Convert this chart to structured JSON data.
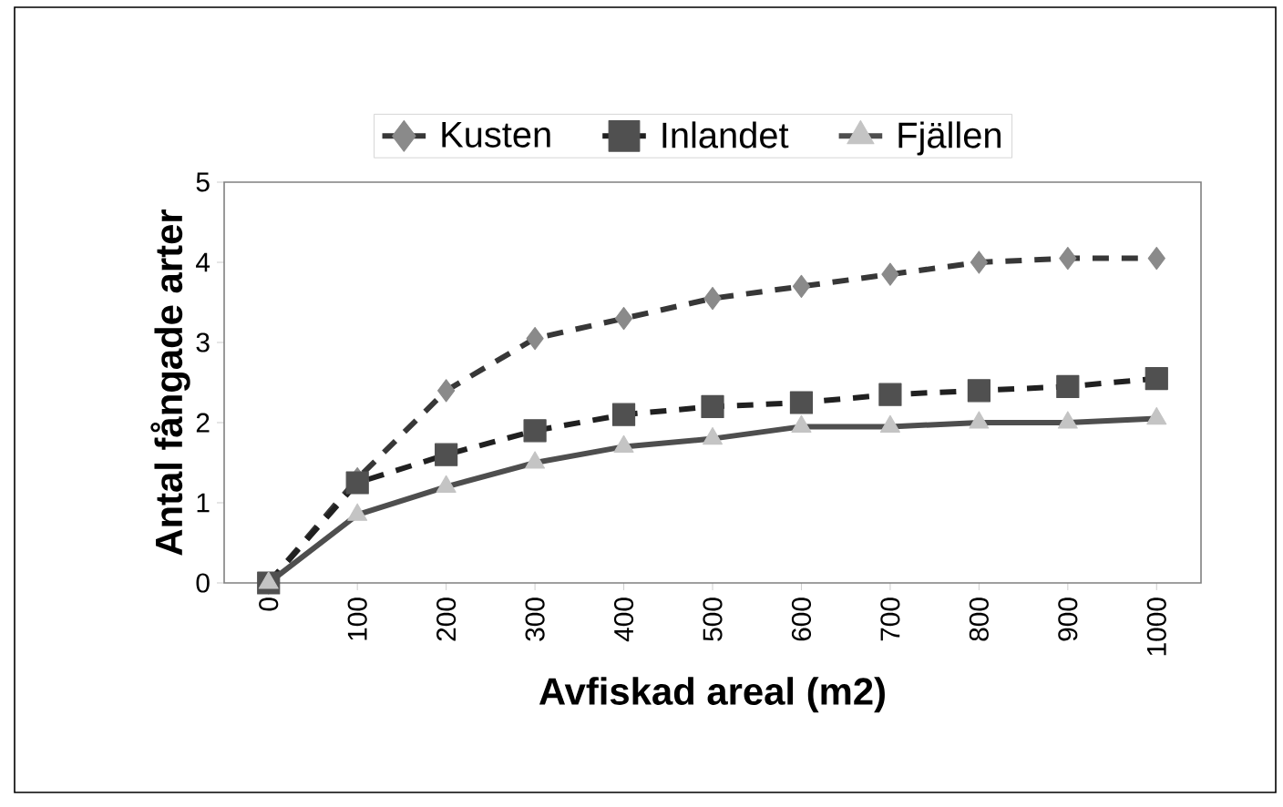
{
  "chart_data": {
    "type": "line",
    "xlabel": "Avfiskad areal (m2)",
    "ylabel": "Antal fångade arter",
    "categories": [
      "0",
      "100",
      "200",
      "300",
      "400",
      "500",
      "600",
      "700",
      "800",
      "900",
      "1000"
    ],
    "series": [
      {
        "name": "Kusten",
        "color": "#8a8a8a",
        "marker": "diamond",
        "line_style": "dashed",
        "values": [
          0,
          1.3,
          2.4,
          3.05,
          3.3,
          3.55,
          3.7,
          3.85,
          4.0,
          4.05,
          4.05
        ]
      },
      {
        "name": "Inlandet",
        "color": "#505050",
        "marker": "square",
        "line_style": "dashed",
        "values": [
          0,
          1.25,
          1.6,
          1.9,
          2.1,
          2.2,
          2.25,
          2.35,
          2.4,
          2.45,
          2.55
        ]
      },
      {
        "name": "Fjällen",
        "color": "#c4c4c4",
        "marker": "triangle",
        "line_style": "solid",
        "values": [
          0,
          0.85,
          1.2,
          1.5,
          1.7,
          1.8,
          1.95,
          1.95,
          2.0,
          2.0,
          2.05
        ]
      }
    ],
    "ylim": [
      0,
      5
    ],
    "yticks": [
      0,
      1,
      2,
      3,
      4,
      5
    ],
    "legend": "top",
    "grid": false
  }
}
